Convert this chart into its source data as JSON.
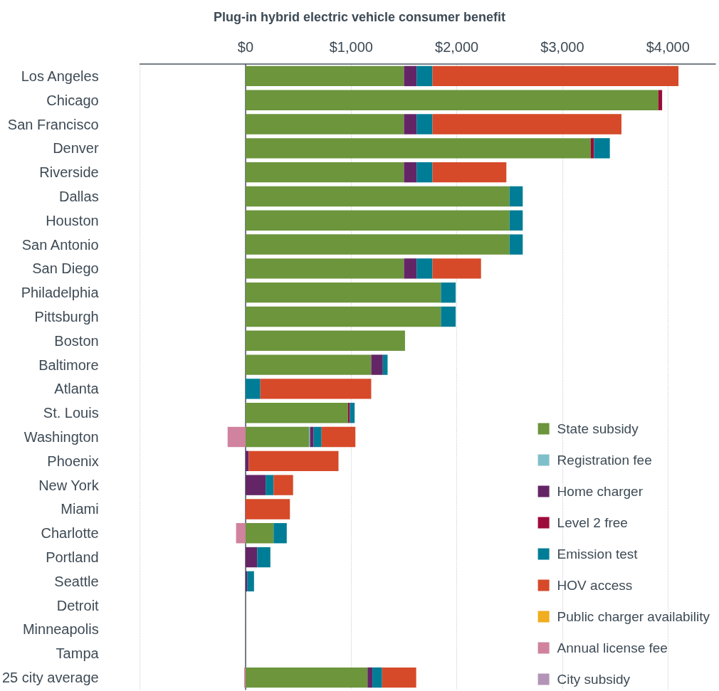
{
  "chart_data": {
    "type": "bar",
    "title": "Plug-in hybrid electric vehicle consumer benefit",
    "orientation": "horizontal",
    "stacked": true,
    "categories": [
      "Los Angeles",
      "Chicago",
      "San Francisco",
      "Denver",
      "Riverside",
      "Dallas",
      "Houston",
      "San Antonio",
      "San Diego",
      "Philadelphia",
      "Pittsburgh",
      "Boston",
      "Baltimore",
      "Atlanta",
      "St. Louis",
      "Washington",
      "Phoenix",
      "New York",
      "Miami",
      "Charlotte",
      "Portland",
      "Seattle",
      "Detroit",
      "Minneapolis",
      "Tampa",
      "25 city average"
    ],
    "series": [
      {
        "name": "State subsidy",
        "color": "#6c953c",
        "values": [
          1500,
          3910,
          1500,
          3270,
          1500,
          2500,
          2500,
          2500,
          1500,
          1850,
          1850,
          1510,
          1190,
          0,
          970,
          600,
          0,
          0,
          0,
          265,
          0,
          0,
          0,
          0,
          0,
          1155
        ]
      },
      {
        "name": "Registration fee",
        "color": "#7fbfc9",
        "values": [
          0,
          0,
          0,
          0,
          0,
          0,
          0,
          0,
          0,
          0,
          0,
          0,
          0,
          0,
          0,
          10,
          0,
          0,
          0,
          0,
          0,
          0,
          0,
          0,
          0,
          0
        ]
      },
      {
        "name": "Home charger",
        "color": "#642566",
        "values": [
          120,
          0,
          120,
          0,
          120,
          0,
          0,
          0,
          120,
          0,
          0,
          0,
          110,
          0,
          0,
          35,
          30,
          190,
          0,
          0,
          110,
          15,
          0,
          0,
          0,
          46
        ]
      },
      {
        "name": "Level 2 free",
        "color": "#9e0a3c",
        "values": [
          0,
          35,
          0,
          30,
          0,
          0,
          0,
          0,
          0,
          0,
          0,
          0,
          0,
          0,
          17,
          0,
          0,
          0,
          0,
          0,
          0,
          0,
          0,
          0,
          0,
          0
        ]
      },
      {
        "name": "Emission test",
        "color": "#007d96",
        "values": [
          150,
          0,
          150,
          150,
          150,
          125,
          125,
          125,
          150,
          140,
          140,
          0,
          45,
          140,
          46,
          75,
          0,
          75,
          0,
          125,
          125,
          65,
          0,
          0,
          0,
          92
        ]
      },
      {
        "name": "HOV access",
        "color": "#d64a29",
        "values": [
          2330,
          0,
          1790,
          0,
          700,
          0,
          0,
          0,
          460,
          0,
          0,
          0,
          0,
          1050,
          0,
          320,
          850,
          185,
          420,
          0,
          0,
          0,
          0,
          0,
          0,
          323
        ]
      },
      {
        "name": "Public charger availability",
        "color": "#f0ad1e",
        "values": [
          0,
          0,
          0,
          0,
          0,
          0,
          0,
          0,
          0,
          0,
          0,
          0,
          0,
          0,
          0,
          0,
          0,
          0,
          0,
          0,
          0,
          0,
          0,
          0,
          0,
          0
        ]
      },
      {
        "name": "Annual license fee",
        "color": "#d0829e",
        "values": [
          0,
          0,
          0,
          0,
          0,
          0,
          0,
          0,
          0,
          0,
          0,
          0,
          0,
          0,
          0,
          -170,
          0,
          0,
          0,
          -90,
          0,
          0,
          0,
          0,
          0,
          -13
        ]
      },
      {
        "name": "City subsidy",
        "color": "#b394b6",
        "values": [
          0,
          0,
          0,
          0,
          0,
          0,
          0,
          0,
          0,
          0,
          0,
          0,
          0,
          0,
          0,
          0,
          0,
          0,
          0,
          0,
          0,
          0,
          0,
          0,
          0,
          0
        ]
      }
    ],
    "xlim": [
      -1000,
      4450
    ],
    "xticks": [
      {
        "value": -1000,
        "label": null
      },
      {
        "value": 0,
        "label": "$0"
      },
      {
        "value": 1000,
        "label": "$1,000"
      },
      {
        "value": 2000,
        "label": "$2,000"
      },
      {
        "value": 3000,
        "label": "$3,000"
      },
      {
        "value": 4000,
        "label": "$4,000"
      }
    ],
    "grid": "x",
    "legend": "bottom right"
  }
}
